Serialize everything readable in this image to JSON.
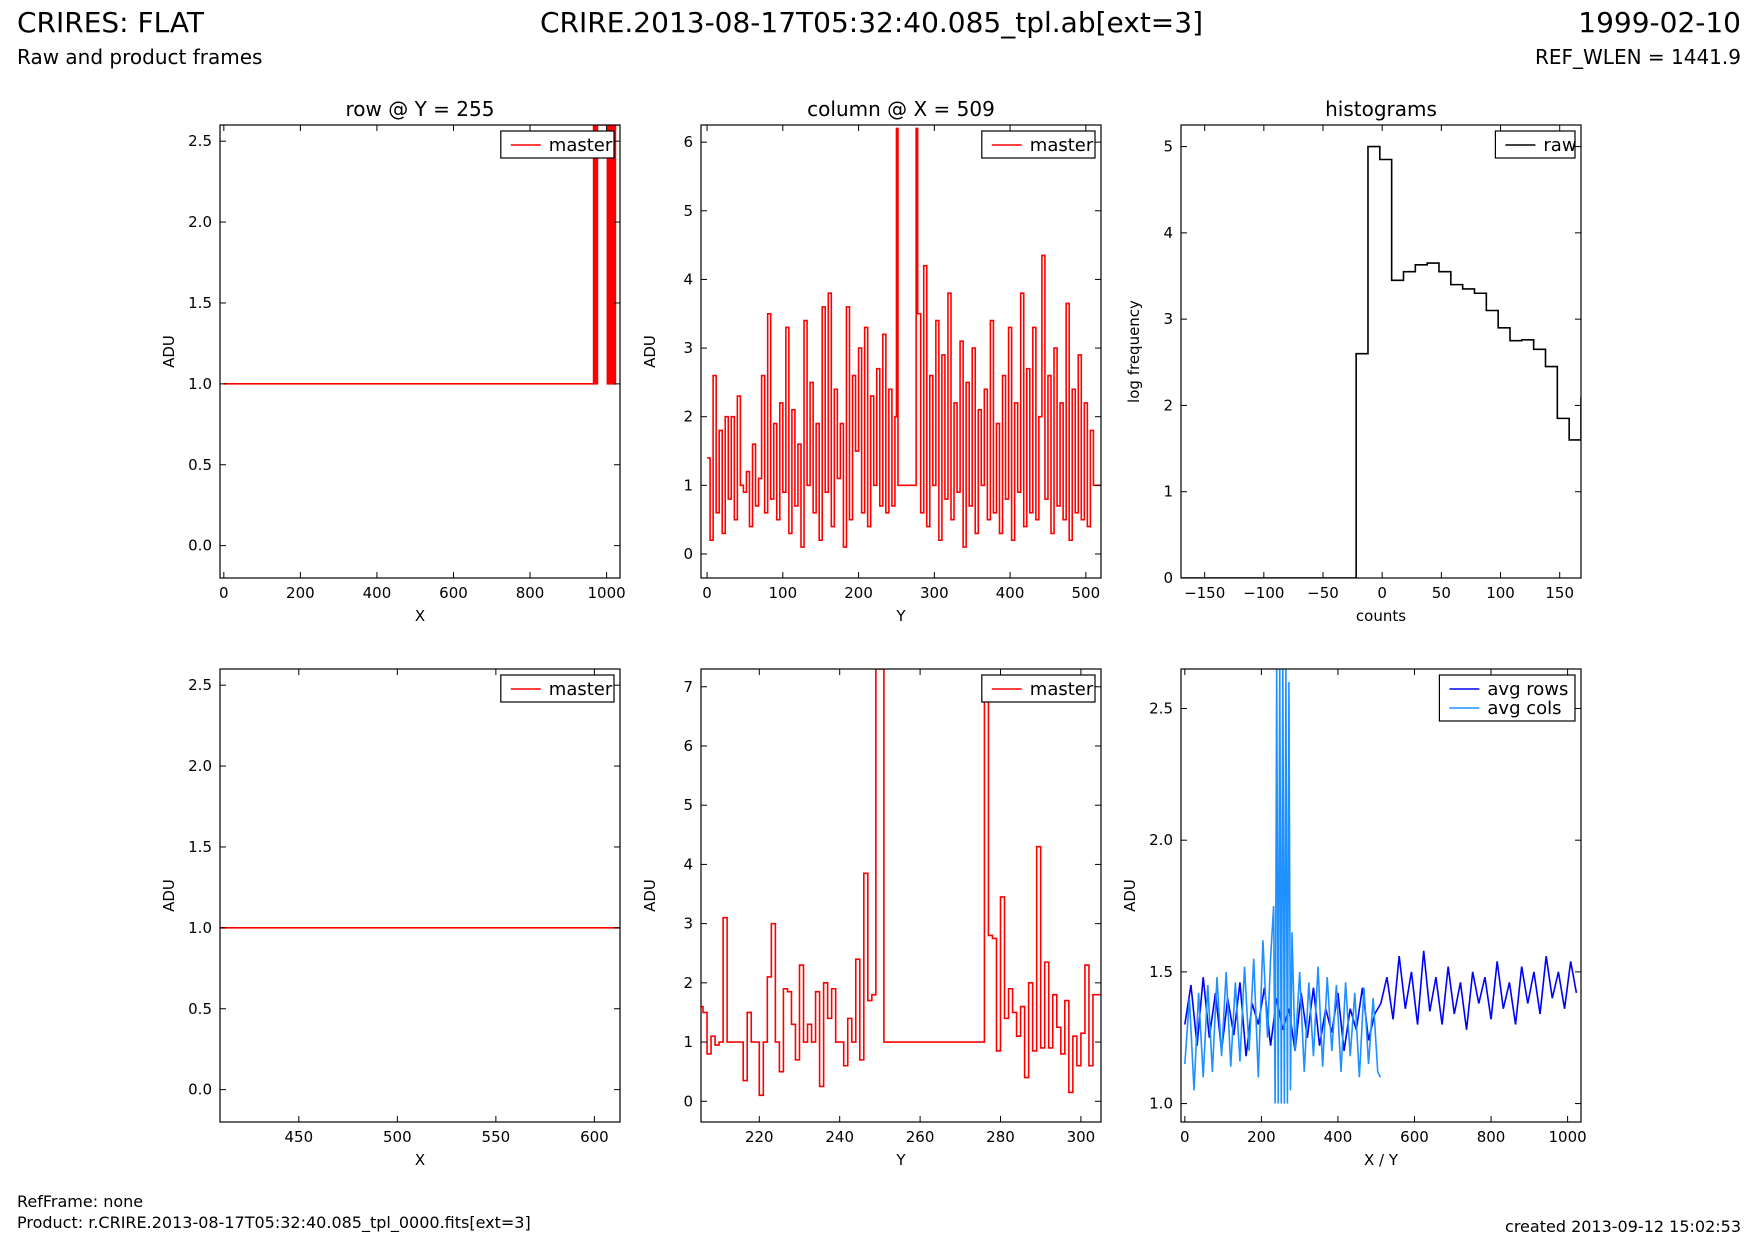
{
  "header": {
    "title_left": "CRIRES: FLAT",
    "subtitle_left": "Raw and product frames",
    "title_center": "CRIRE.2013-08-17T05:32:40.085_tpl.ab[ext=3]",
    "title_right": "1999-02-10",
    "subtitle_right": "REF_WLEN = 1441.9"
  },
  "footer": {
    "refframe": "RefFrame: none",
    "product": "Product: r.CRIRE.2013-08-17T05:32:40.085_tpl_0000.fits[ext=3]",
    "created": "created 2013-09-12 15:02:53"
  },
  "colors": {
    "master": "#ff0000",
    "raw": "#000000",
    "avg_rows": "#0000ff",
    "avg_cols": "#1e90ff"
  },
  "chart_data": [
    {
      "id": "row-full",
      "type": "line",
      "title": "row @ Y = 255",
      "xlabel": "X",
      "ylabel": "ADU",
      "xlim": [
        -10,
        1035
      ],
      "ylim": [
        -0.2,
        2.6
      ],
      "xticks": [
        0,
        200,
        400,
        600,
        800,
        1000
      ],
      "yticks": [
        0.0,
        0.5,
        1.0,
        1.5,
        2.0,
        2.5
      ],
      "ytick_decimals": 1,
      "legend": "top-right",
      "series": [
        {
          "name": "master",
          "color": "#ff0000",
          "step": true,
          "x": [
            0,
            966,
            967,
            968,
            969,
            970,
            971,
            972,
            973,
            974,
            975,
            976,
            1002,
            1003,
            1004,
            1005,
            1006,
            1007,
            1008,
            1009,
            1010,
            1011,
            1012,
            1013,
            1014,
            1015,
            1016,
            1017,
            1018,
            1019,
            1020,
            1021,
            1022,
            1023
          ],
          "values": [
            1,
            2.6,
            1,
            2.6,
            1,
            2.6,
            1,
            2.6,
            1,
            2.6,
            1,
            2.6,
            1,
            2.6,
            1,
            2.6,
            1,
            2.6,
            1,
            2.6,
            1,
            2.6,
            1,
            2.6,
            1,
            2.6,
            1,
            2.6,
            1,
            2.6,
            1,
            2.6,
            1,
            2.6
          ]
        }
      ]
    },
    {
      "id": "column-full",
      "type": "line",
      "title": "column @ X = 509",
      "xlabel": "Y",
      "ylabel": "ADU",
      "xlim": [
        -8,
        520
      ],
      "ylim": [
        -0.35,
        6.25
      ],
      "xticks": [
        0,
        100,
        200,
        300,
        400,
        500
      ],
      "yticks": [
        0,
        1,
        2,
        3,
        4,
        5,
        6
      ],
      "ytick_decimals": 0,
      "legend": "top-right",
      "series": [
        {
          "name": "master",
          "color": "#ff0000",
          "step": true,
          "x": [
            0,
            4,
            8,
            12,
            16,
            20,
            24,
            28,
            32,
            36,
            40,
            44,
            48,
            52,
            56,
            60,
            64,
            68,
            72,
            76,
            80,
            84,
            88,
            92,
            96,
            100,
            104,
            108,
            112,
            116,
            120,
            124,
            128,
            132,
            136,
            140,
            144,
            148,
            152,
            156,
            160,
            164,
            168,
            172,
            176,
            180,
            184,
            188,
            192,
            196,
            200,
            204,
            208,
            212,
            216,
            220,
            224,
            228,
            232,
            236,
            240,
            244,
            248,
            250,
            252,
            276,
            278,
            282,
            286,
            290,
            294,
            298,
            302,
            306,
            310,
            314,
            318,
            322,
            326,
            330,
            334,
            338,
            342,
            346,
            350,
            354,
            358,
            362,
            366,
            370,
            374,
            378,
            382,
            386,
            390,
            394,
            398,
            402,
            406,
            410,
            414,
            418,
            422,
            426,
            430,
            434,
            438,
            442,
            446,
            450,
            454,
            458,
            462,
            466,
            470,
            474,
            478,
            482,
            486,
            490,
            494,
            498,
            502,
            506,
            510
          ],
          "values": [
            1.4,
            0.2,
            2.6,
            0.6,
            1.8,
            0.3,
            2.0,
            0.8,
            2.0,
            0.5,
            2.3,
            1.0,
            0.9,
            1.2,
            0.4,
            1.6,
            0.7,
            1.1,
            2.6,
            0.6,
            3.5,
            0.8,
            1.9,
            0.5,
            2.2,
            0.9,
            3.3,
            0.3,
            2.1,
            0.7,
            1.6,
            0.1,
            3.4,
            1.0,
            2.5,
            0.6,
            1.9,
            0.2,
            3.6,
            0.9,
            3.8,
            0.4,
            2.4,
            1.1,
            1.9,
            0.1,
            3.6,
            0.5,
            2.6,
            1.5,
            3.0,
            0.6,
            3.3,
            0.4,
            2.3,
            1.0,
            2.7,
            0.7,
            3.2,
            0.6,
            2.4,
            0.7,
            2.0,
            6.2,
            1.0,
            6.2,
            3.5,
            0.6,
            4.2,
            0.4,
            2.6,
            1.0,
            3.4,
            0.2,
            2.9,
            0.8,
            3.8,
            0.5,
            2.2,
            0.9,
            3.1,
            0.1,
            2.5,
            0.7,
            3.0,
            0.3,
            2.1,
            1.0,
            2.4,
            0.5,
            3.4,
            0.6,
            1.9,
            0.3,
            2.6,
            0.8,
            3.3,
            0.2,
            2.2,
            0.9,
            3.8,
            0.4,
            2.7,
            0.6,
            3.3,
            0.5,
            2.0,
            4.35,
            0.8,
            2.6,
            0.3,
            3.0,
            0.7,
            2.2,
            0.5,
            3.65,
            0.2,
            2.4,
            0.6,
            2.9,
            0.5,
            2.2,
            0.4,
            1.8,
            1.0
          ]
        }
      ]
    },
    {
      "id": "histograms",
      "type": "line",
      "title": "histograms",
      "xlabel": "counts",
      "ylabel": "log frequency",
      "xlim": [
        -170,
        168
      ],
      "ylim": [
        0,
        5.25
      ],
      "xticks": [
        -150,
        -100,
        -50,
        0,
        50,
        100,
        150
      ],
      "yticks": [
        0,
        1,
        2,
        3,
        4,
        5
      ],
      "ytick_decimals": 0,
      "legend": "top-right",
      "series": [
        {
          "name": "raw",
          "color": "#000000",
          "step": true,
          "x": [
            -170,
            -22,
            -12,
            -2,
            8,
            18,
            28,
            38,
            48,
            58,
            68,
            78,
            88,
            98,
            108,
            118,
            128,
            138,
            148,
            158,
            168
          ],
          "values": [
            0,
            2.6,
            5.0,
            4.85,
            3.45,
            3.55,
            3.63,
            3.65,
            3.55,
            3.4,
            3.35,
            3.3,
            3.1,
            2.9,
            2.75,
            2.76,
            2.65,
            2.45,
            1.85,
            1.6,
            2.1
          ]
        }
      ]
    },
    {
      "id": "row-zoom",
      "type": "line",
      "title": "",
      "xlabel": "X",
      "ylabel": "ADU",
      "xlim": [
        410,
        613
      ],
      "ylim": [
        -0.2,
        2.6
      ],
      "xticks": [
        450,
        500,
        550,
        600
      ],
      "yticks": [
        0.0,
        0.5,
        1.0,
        1.5,
        2.0,
        2.5
      ],
      "ytick_decimals": 1,
      "legend": "top-right",
      "series": [
        {
          "name": "master",
          "color": "#ff0000",
          "step": true,
          "x": [
            410,
            613
          ],
          "values": [
            1,
            1
          ]
        }
      ]
    },
    {
      "id": "column-zoom",
      "type": "line",
      "title": "",
      "xlabel": "Y",
      "ylabel": "ADU",
      "xlim": [
        205.5,
        305
      ],
      "ylim": [
        -0.35,
        7.3
      ],
      "xticks": [
        220,
        240,
        260,
        280,
        300
      ],
      "yticks": [
        0,
        1,
        2,
        3,
        4,
        5,
        6,
        7
      ],
      "ytick_decimals": 0,
      "legend": "top-right",
      "series": [
        {
          "name": "master",
          "color": "#ff0000",
          "step": true,
          "x": [
            205,
            206,
            207,
            208,
            209,
            210,
            211,
            212,
            213,
            214,
            215,
            216,
            217,
            218,
            219,
            220,
            221,
            222,
            223,
            224,
            225,
            226,
            227,
            228,
            229,
            230,
            231,
            232,
            233,
            234,
            235,
            236,
            237,
            238,
            239,
            240,
            241,
            242,
            243,
            244,
            245,
            246,
            247,
            248,
            249,
            250,
            251,
            276,
            277,
            278,
            279,
            280,
            281,
            282,
            283,
            284,
            285,
            286,
            287,
            288,
            289,
            290,
            291,
            292,
            293,
            294,
            295,
            296,
            297,
            298,
            299,
            300,
            301,
            302,
            303,
            304
          ],
          "values": [
            1.6,
            1.5,
            0.8,
            1.1,
            0.95,
            1.0,
            3.1,
            1.0,
            1.0,
            1.0,
            1.0,
            0.35,
            1.5,
            1.0,
            1.0,
            0.1,
            1.0,
            2.1,
            3.0,
            1.0,
            0.5,
            1.9,
            1.85,
            1.3,
            0.7,
            2.3,
            1.0,
            1.3,
            1.0,
            1.85,
            0.25,
            2.0,
            1.4,
            1.9,
            1.0,
            1.0,
            0.6,
            1.4,
            1.0,
            2.4,
            0.7,
            3.85,
            1.7,
            1.8,
            7.3,
            7.3,
            1.0,
            6.8,
            2.8,
            2.75,
            0.85,
            3.45,
            1.4,
            1.9,
            1.5,
            1.1,
            1.6,
            0.4,
            2.0,
            0.85,
            4.3,
            0.9,
            2.35,
            0.9,
            1.8,
            1.25,
            0.8,
            1.7,
            0.15,
            1.1,
            0.6,
            1.15,
            2.3,
            0.6,
            1.8,
            1.8
          ]
        }
      ]
    },
    {
      "id": "averages",
      "type": "line",
      "title": "",
      "xlabel": "X / Y",
      "ylabel": "ADU",
      "xlim": [
        -10,
        1035
      ],
      "ylim": [
        0.93,
        2.65
      ],
      "xticks": [
        0,
        200,
        400,
        600,
        800,
        1000
      ],
      "yticks": [
        1.0,
        1.5,
        2.0,
        2.5
      ],
      "ytick_decimals": 1,
      "legend": "top-right",
      "series": [
        {
          "name": "avg rows",
          "color": "#0000ff",
          "step": false,
          "x": [
            0,
            16,
            32,
            48,
            64,
            80,
            96,
            112,
            128,
            144,
            160,
            176,
            192,
            208,
            224,
            240,
            256,
            272,
            288,
            304,
            320,
            336,
            352,
            368,
            384,
            400,
            416,
            432,
            448,
            464,
            480,
            496,
            512,
            528,
            544,
            560,
            576,
            592,
            608,
            624,
            640,
            656,
            672,
            688,
            704,
            720,
            736,
            752,
            768,
            784,
            800,
            816,
            832,
            848,
            864,
            880,
            896,
            912,
            928,
            944,
            960,
            976,
            992,
            1008,
            1023
          ],
          "values": [
            1.3,
            1.45,
            1.22,
            1.48,
            1.25,
            1.42,
            1.2,
            1.4,
            1.26,
            1.46,
            1.18,
            1.38,
            1.3,
            1.44,
            1.22,
            1.4,
            1.28,
            1.36,
            1.2,
            1.42,
            1.25,
            1.44,
            1.22,
            1.36,
            1.27,
            1.42,
            1.2,
            1.36,
            1.28,
            1.44,
            1.24,
            1.34,
            1.38,
            1.48,
            1.32,
            1.56,
            1.36,
            1.5,
            1.3,
            1.58,
            1.35,
            1.48,
            1.3,
            1.52,
            1.34,
            1.46,
            1.28,
            1.5,
            1.38,
            1.48,
            1.32,
            1.54,
            1.36,
            1.46,
            1.3,
            1.52,
            1.38,
            1.5,
            1.34,
            1.56,
            1.4,
            1.5,
            1.36,
            1.54,
            1.42
          ]
        },
        {
          "name": "avg cols",
          "color": "#1e90ff",
          "step": false,
          "x": [
            0,
            12,
            24,
            36,
            48,
            60,
            72,
            84,
            96,
            108,
            120,
            132,
            144,
            156,
            168,
            180,
            192,
            204,
            216,
            224,
            232,
            236,
            240,
            244,
            248,
            252,
            256,
            260,
            264,
            268,
            272,
            276,
            280,
            288,
            300,
            312,
            324,
            336,
            348,
            360,
            372,
            384,
            396,
            408,
            420,
            432,
            444,
            456,
            468,
            480,
            492,
            504,
            511
          ],
          "values": [
            1.15,
            1.4,
            1.05,
            1.42,
            1.1,
            1.45,
            1.12,
            1.48,
            1.18,
            1.5,
            1.14,
            1.46,
            1.16,
            1.52,
            1.2,
            1.55,
            1.1,
            1.62,
            1.25,
            1.55,
            1.75,
            1.0,
            2.65,
            1.0,
            2.65,
            1.0,
            2.65,
            1.0,
            2.65,
            1.0,
            2.6,
            1.05,
            1.65,
            1.2,
            1.5,
            1.12,
            1.46,
            1.18,
            1.52,
            1.14,
            1.48,
            1.2,
            1.45,
            1.12,
            1.46,
            1.18,
            1.42,
            1.1,
            1.44,
            1.15,
            1.4,
            1.12,
            1.1
          ]
        }
      ]
    }
  ]
}
